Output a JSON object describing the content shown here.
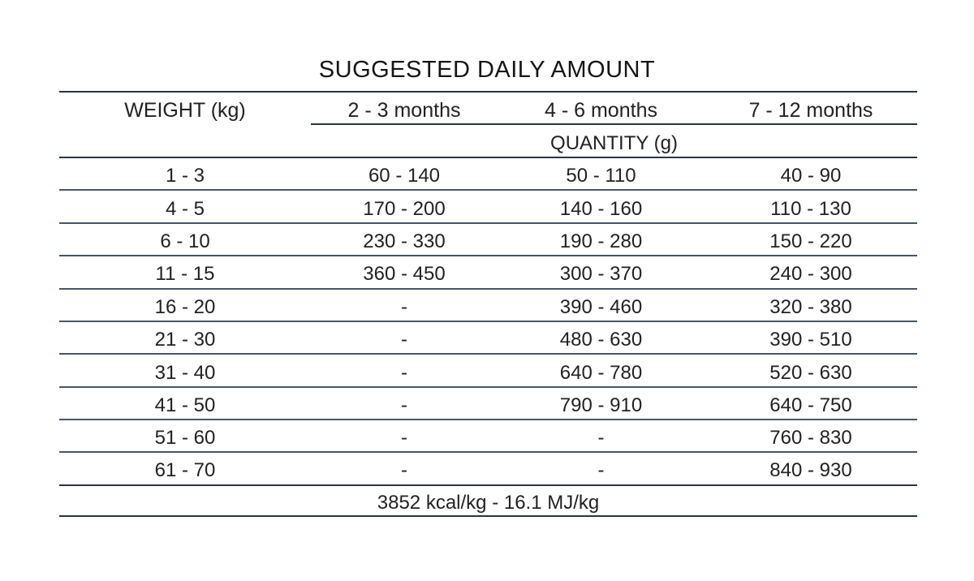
{
  "table": {
    "title": "SUGGESTED DAILY AMOUNT",
    "weight_header": "WEIGHT (kg)",
    "age_headers": [
      "2 - 3  months",
      "4 - 6  months",
      "7 - 12  months"
    ],
    "quantity_label": "QUANTITY (g)",
    "rows": [
      [
        "1 - 3",
        "60 - 140",
        "50 - 110",
        "40 - 90"
      ],
      [
        "4 - 5",
        "170 - 200",
        "140 - 160",
        "110 - 130"
      ],
      [
        "6 - 10",
        "230 - 330",
        "190 - 280",
        "150 - 220"
      ],
      [
        "11 - 15",
        "360 - 450",
        "300 - 370",
        "240 - 300"
      ],
      [
        "16 - 20",
        "-",
        "390 - 460",
        "320 - 380"
      ],
      [
        "21 - 30",
        "-",
        "480 - 630",
        "390 - 510"
      ],
      [
        "31 - 40",
        "-",
        "640 - 780",
        "520 - 630"
      ],
      [
        "41 - 50",
        "-",
        "790 - 910",
        "640 - 750"
      ],
      [
        "51 - 60",
        "-",
        "-",
        "760 - 830"
      ],
      [
        "61 - 70",
        "-",
        "-",
        "840 - 930"
      ]
    ],
    "footer": "3852 kcal/kg - 16.1 MJ/kg"
  }
}
